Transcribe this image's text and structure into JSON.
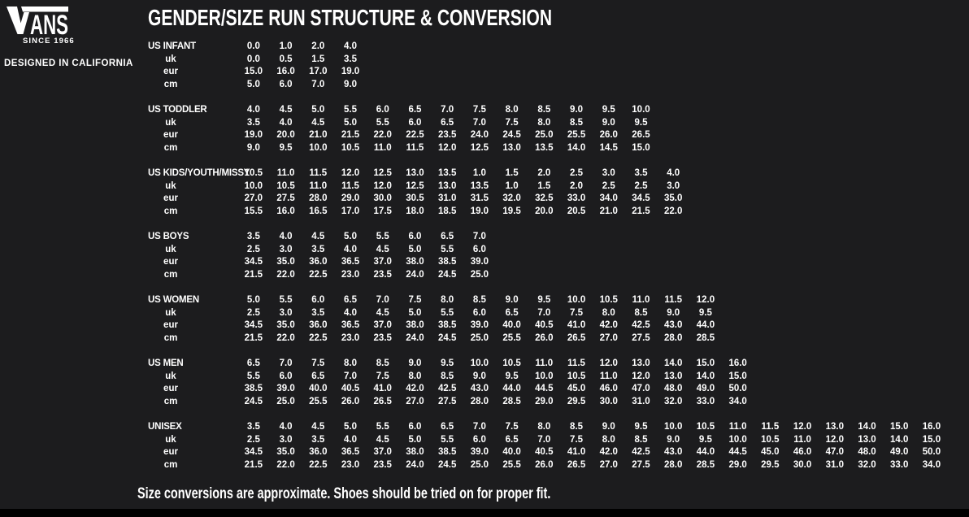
{
  "brand": {
    "logo_v": "V",
    "logo_ans": "ANS",
    "since": "SINCE 1966",
    "tagline": "DESIGNED IN CALIFORNIA"
  },
  "colors": {
    "background": "#1c1c1e",
    "text": "#ffffff",
    "bottom_bar": "#000000"
  },
  "chart_data": {
    "type": "table",
    "title": "GENDER/SIZE RUN STRUCTURE & CONVERSION",
    "note": "Size conversions are approximate. Shoes should be tried on for proper fit.",
    "sections": [
      {
        "rows": [
          {
            "label": "US INFANT",
            "values": [
              "0.0",
              "1.0",
              "2.0",
              "4.0"
            ]
          },
          {
            "label": "uk",
            "values": [
              "0.0",
              "0.5",
              "1.5",
              "3.5"
            ]
          },
          {
            "label": "eur",
            "values": [
              "15.0",
              "16.0",
              "17.0",
              "19.0"
            ]
          },
          {
            "label": "cm",
            "values": [
              "5.0",
              "6.0",
              "7.0",
              "9.0"
            ]
          }
        ]
      },
      {
        "rows": [
          {
            "label": "US TODDLER",
            "values": [
              "4.0",
              "4.5",
              "5.0",
              "5.5",
              "6.0",
              "6.5",
              "7.0",
              "7.5",
              "8.0",
              "8.5",
              "9.0",
              "9.5",
              "10.0"
            ]
          },
          {
            "label": "uk",
            "values": [
              "3.5",
              "4.0",
              "4.5",
              "5.0",
              "5.5",
              "6.0",
              "6.5",
              "7.0",
              "7.5",
              "8.0",
              "8.5",
              "9.0",
              "9.5"
            ]
          },
          {
            "label": "eur",
            "values": [
              "19.0",
              "20.0",
              "21.0",
              "21.5",
              "22.0",
              "22.5",
              "23.5",
              "24.0",
              "24.5",
              "25.0",
              "25.5",
              "26.0",
              "26.5"
            ]
          },
          {
            "label": "cm",
            "values": [
              "9.0",
              "9.5",
              "10.0",
              "10.5",
              "11.0",
              "11.5",
              "12.0",
              "12.5",
              "13.0",
              "13.5",
              "14.0",
              "14.5",
              "15.0"
            ]
          }
        ]
      },
      {
        "rows": [
          {
            "label": "US KIDS/YOUTH/MISSY",
            "values": [
              "10.5",
              "11.0",
              "11.5",
              "12.0",
              "12.5",
              "13.0",
              "13.5",
              "1.0",
              "1.5",
              "2.0",
              "2.5",
              "3.0",
              "3.5",
              "4.0"
            ]
          },
          {
            "label": "uk",
            "values": [
              "10.0",
              "10.5",
              "11.0",
              "11.5",
              "12.0",
              "12.5",
              "13.0",
              "13.5",
              "1.0",
              "1.5",
              "2.0",
              "2.5",
              "2.5",
              "3.0"
            ]
          },
          {
            "label": "eur",
            "values": [
              "27.0",
              "27.5",
              "28.0",
              "29.0",
              "30.0",
              "30.5",
              "31.0",
              "31.5",
              "32.0",
              "32.5",
              "33.0",
              "34.0",
              "34.5",
              "35.0"
            ]
          },
          {
            "label": "cm",
            "values": [
              "15.5",
              "16.0",
              "16.5",
              "17.0",
              "17.5",
              "18.0",
              "18.5",
              "19.0",
              "19.5",
              "20.0",
              "20.5",
              "21.0",
              "21.5",
              "22.0"
            ]
          }
        ]
      },
      {
        "rows": [
          {
            "label": "US BOYS",
            "values": [
              "3.5",
              "4.0",
              "4.5",
              "5.0",
              "5.5",
              "6.0",
              "6.5",
              "7.0"
            ]
          },
          {
            "label": "uk",
            "values": [
              "2.5",
              "3.0",
              "3.5",
              "4.0",
              "4.5",
              "5.0",
              "5.5",
              "6.0"
            ]
          },
          {
            "label": "eur",
            "values": [
              "34.5",
              "35.0",
              "36.0",
              "36.5",
              "37.0",
              "38.0",
              "38.5",
              "39.0"
            ]
          },
          {
            "label": "cm",
            "values": [
              "21.5",
              "22.0",
              "22.5",
              "23.0",
              "23.5",
              "24.0",
              "24.5",
              "25.0"
            ]
          }
        ]
      },
      {
        "rows": [
          {
            "label": "US WOMEN",
            "values": [
              "5.0",
              "5.5",
              "6.0",
              "6.5",
              "7.0",
              "7.5",
              "8.0",
              "8.5",
              "9.0",
              "9.5",
              "10.0",
              "10.5",
              "11.0",
              "11.5",
              "12.0"
            ]
          },
          {
            "label": "uk",
            "values": [
              "2.5",
              "3.0",
              "3.5",
              "4.0",
              "4.5",
              "5.0",
              "5.5",
              "6.0",
              "6.5",
              "7.0",
              "7.5",
              "8.0",
              "8.5",
              "9.0",
              "9.5"
            ]
          },
          {
            "label": "eur",
            "values": [
              "34.5",
              "35.0",
              "36.0",
              "36.5",
              "37.0",
              "38.0",
              "38.5",
              "39.0",
              "40.0",
              "40.5",
              "41.0",
              "42.0",
              "42.5",
              "43.0",
              "44.0"
            ]
          },
          {
            "label": "cm",
            "values": [
              "21.5",
              "22.0",
              "22.5",
              "23.0",
              "23.5",
              "24.0",
              "24.5",
              "25.0",
              "25.5",
              "26.0",
              "26.5",
              "27.0",
              "27.5",
              "28.0",
              "28.5"
            ]
          }
        ]
      },
      {
        "rows": [
          {
            "label": "US MEN",
            "values": [
              "6.5",
              "7.0",
              "7.5",
              "8.0",
              "8.5",
              "9.0",
              "9.5",
              "10.0",
              "10.5",
              "11.0",
              "11.5",
              "12.0",
              "13.0",
              "14.0",
              "15.0",
              "16.0"
            ]
          },
          {
            "label": "uk",
            "values": [
              "5.5",
              "6.0",
              "6.5",
              "7.0",
              "7.5",
              "8.0",
              "8.5",
              "9.0",
              "9.5",
              "10.0",
              "10.5",
              "11.0",
              "12.0",
              "13.0",
              "14.0",
              "15.0"
            ]
          },
          {
            "label": "eur",
            "values": [
              "38.5",
              "39.0",
              "40.0",
              "40.5",
              "41.0",
              "42.0",
              "42.5",
              "43.0",
              "44.0",
              "44.5",
              "45.0",
              "46.0",
              "47.0",
              "48.0",
              "49.0",
              "50.0"
            ]
          },
          {
            "label": "cm",
            "values": [
              "24.5",
              "25.0",
              "25.5",
              "26.0",
              "26.5",
              "27.0",
              "27.5",
              "28.0",
              "28.5",
              "29.0",
              "29.5",
              "30.0",
              "31.0",
              "32.0",
              "33.0",
              "34.0"
            ]
          }
        ]
      },
      {
        "rows": [
          {
            "label": "UNISEX",
            "values": [
              "3.5",
              "4.0",
              "4.5",
              "5.0",
              "5.5",
              "6.0",
              "6.5",
              "7.0",
              "7.5",
              "8.0",
              "8.5",
              "9.0",
              "9.5",
              "10.0",
              "10.5",
              "11.0",
              "11.5",
              "12.0",
              "13.0",
              "14.0",
              "15.0",
              "16.0"
            ]
          },
          {
            "label": "uk",
            "values": [
              "2.5",
              "3.0",
              "3.5",
              "4.0",
              "4.5",
              "5.0",
              "5.5",
              "6.0",
              "6.5",
              "7.0",
              "7.5",
              "8.0",
              "8.5",
              "9.0",
              "9.5",
              "10.0",
              "10.5",
              "11.0",
              "12.0",
              "13.0",
              "14.0",
              "15.0"
            ]
          },
          {
            "label": "eur",
            "values": [
              "34.5",
              "35.0",
              "36.0",
              "36.5",
              "37.0",
              "38.0",
              "38.5",
              "39.0",
              "40.0",
              "40.5",
              "41.0",
              "42.0",
              "42.5",
              "43.0",
              "44.0",
              "44.5",
              "45.0",
              "46.0",
              "47.0",
              "48.0",
              "49.0",
              "50.0"
            ]
          },
          {
            "label": "cm",
            "values": [
              "21.5",
              "22.0",
              "22.5",
              "23.0",
              "23.5",
              "24.0",
              "24.5",
              "25.0",
              "25.5",
              "26.0",
              "26.5",
              "27.0",
              "27.5",
              "28.0",
              "28.5",
              "29.0",
              "29.5",
              "30.0",
              "31.0",
              "32.0",
              "33.0",
              "34.0"
            ]
          }
        ]
      }
    ]
  }
}
